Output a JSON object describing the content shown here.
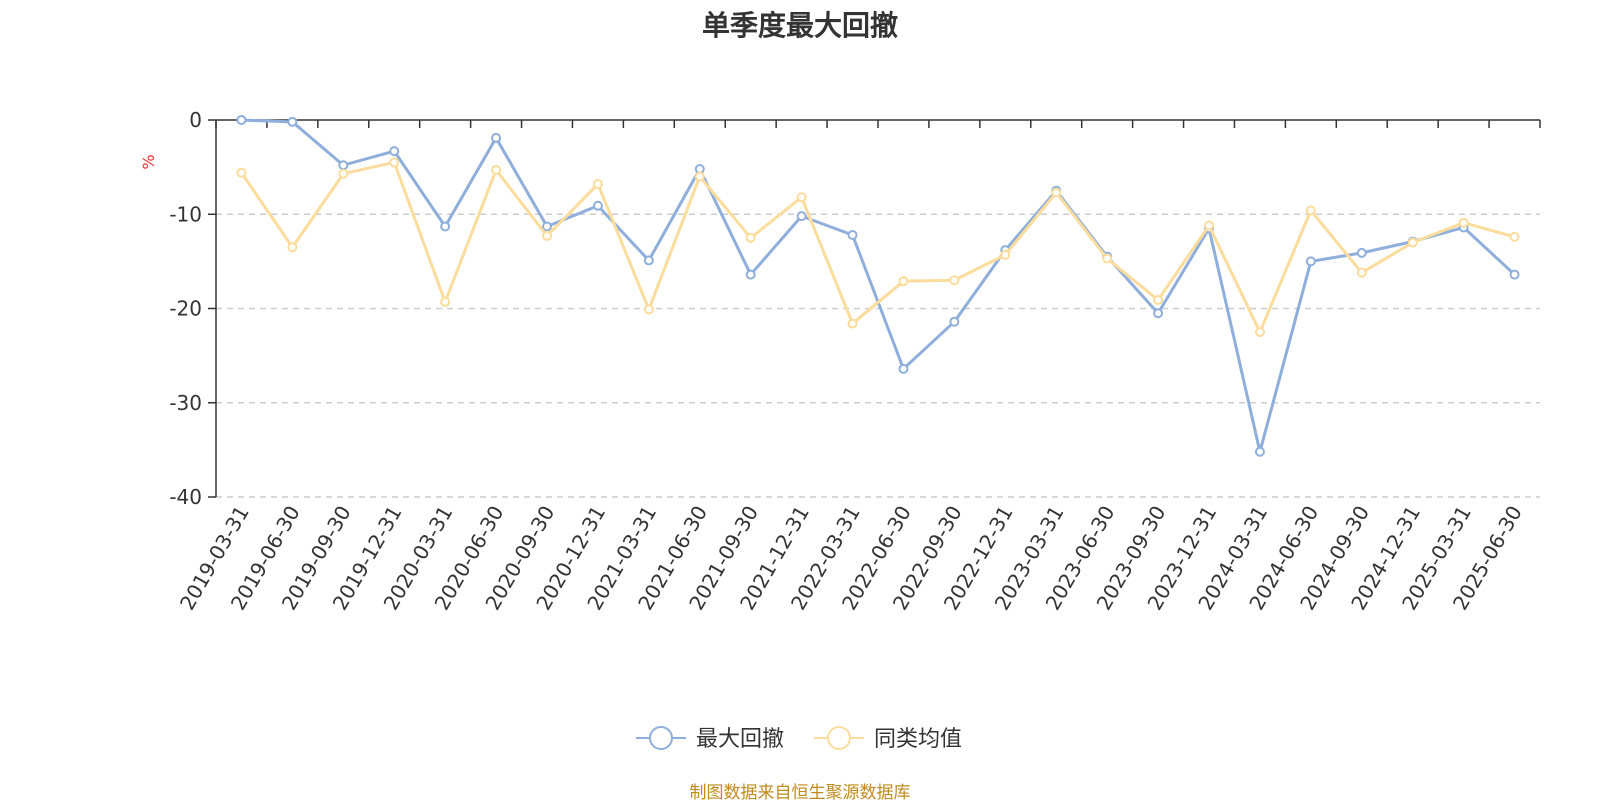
{
  "chart_data": {
    "type": "line",
    "title": "单季度最大回撤",
    "ylabel": "%",
    "xlabel": "",
    "ylim": [
      -40,
      0
    ],
    "yticks": [
      0,
      -10,
      -20,
      -30,
      -40
    ],
    "grid": true,
    "legend_position": "bottom",
    "categories": [
      "2019-03-31",
      "2019-06-30",
      "2019-09-30",
      "2019-12-31",
      "2020-03-31",
      "2020-06-30",
      "2020-09-30",
      "2020-12-31",
      "2021-03-31",
      "2021-06-30",
      "2021-09-30",
      "2021-12-31",
      "2022-03-31",
      "2022-06-30",
      "2022-09-30",
      "2022-12-31",
      "2023-03-31",
      "2023-06-30",
      "2023-09-30",
      "2023-12-31",
      "2024-03-31",
      "2024-06-30",
      "2024-09-30",
      "2024-12-31",
      "2025-03-31",
      "2025-06-30"
    ],
    "series": [
      {
        "name": "最大回撤",
        "color": "#8eaedb",
        "values": [
          0.0,
          -0.2,
          -4.8,
          -3.3,
          -11.3,
          -1.9,
          -11.3,
          -9.1,
          -14.9,
          -5.2,
          -16.4,
          -10.2,
          -12.2,
          -26.4,
          -21.4,
          -13.8,
          -7.5,
          -14.5,
          -20.5,
          -11.5,
          -35.2,
          -15.0,
          -14.1,
          -12.9,
          -11.4,
          -16.4
        ]
      },
      {
        "name": "同类均值",
        "color": "#fcdc9c",
        "values": [
          -5.6,
          -13.5,
          -5.7,
          -4.5,
          -19.3,
          -5.3,
          -12.3,
          -6.8,
          -20.1,
          -6.0,
          -12.5,
          -8.2,
          -21.6,
          -17.1,
          -17.0,
          -14.3,
          -7.7,
          -14.7,
          -19.1,
          -11.2,
          -22.5,
          -9.6,
          -16.2,
          -13.0,
          -10.9,
          -12.4
        ]
      }
    ]
  },
  "source_note": "制图数据来自恒生聚源数据库"
}
